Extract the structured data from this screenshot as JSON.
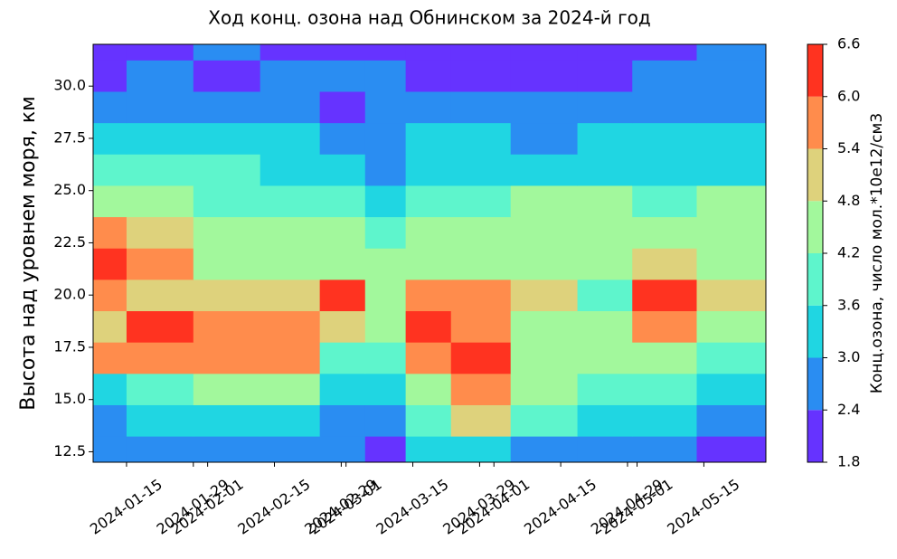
{
  "chart_data": {
    "type": "contour",
    "title": "Ход конц. озона над Обнинском за 2024-й год",
    "ylabel": "Высота над уровнем моря, км",
    "colorbar_label": "Конц.озона, число мол.*10е12/см3",
    "x": [
      "2024-01-08",
      "2024-01-22",
      "2024-02-05",
      "2024-02-19",
      "2024-03-01",
      "2024-03-09",
      "2024-03-18",
      "2024-03-28",
      "2024-04-12",
      "2024-04-25",
      "2024-05-05",
      "2024-05-22"
    ],
    "y": [
      12.5,
      14,
      15.5,
      17,
      18.5,
      20,
      21.5,
      23,
      24.5,
      26,
      27.5,
      29,
      30.5,
      32
    ],
    "z": [
      [
        2.7,
        2.7,
        2.7,
        2.7,
        2.7,
        2.1,
        3.3,
        3.3,
        2.7,
        2.7,
        2.7,
        2.1
      ],
      [
        2.7,
        3.3,
        3.3,
        3.3,
        2.7,
        2.7,
        3.9,
        5.1,
        3.9,
        3.3,
        3.3,
        2.7
      ],
      [
        3.3,
        3.9,
        4.5,
        4.5,
        3.3,
        3.3,
        4.5,
        5.7,
        4.5,
        3.9,
        3.9,
        3.3
      ],
      [
        5.7,
        5.7,
        5.7,
        5.7,
        3.9,
        3.9,
        5.7,
        6.3,
        4.5,
        4.5,
        4.5,
        3.9
      ],
      [
        5.1,
        6.3,
        5.7,
        5.7,
        5.1,
        4.5,
        6.3,
        5.7,
        4.5,
        4.5,
        5.7,
        4.5
      ],
      [
        5.7,
        5.1,
        5.1,
        5.1,
        6.3,
        4.5,
        5.7,
        5.7,
        5.1,
        3.9,
        6.3,
        5.1
      ],
      [
        6.3,
        5.7,
        4.5,
        4.5,
        4.5,
        4.5,
        4.5,
        4.5,
        4.5,
        4.5,
        5.1,
        4.5
      ],
      [
        5.7,
        5.1,
        4.5,
        4.5,
        4.5,
        3.9,
        4.5,
        4.5,
        4.5,
        4.5,
        4.5,
        4.5
      ],
      [
        4.5,
        4.5,
        3.9,
        3.9,
        3.9,
        3.3,
        3.9,
        3.9,
        4.5,
        4.5,
        3.9,
        4.5
      ],
      [
        3.9,
        3.9,
        3.9,
        3.3,
        3.3,
        2.7,
        3.3,
        3.3,
        3.3,
        3.3,
        3.3,
        3.3
      ],
      [
        3.3,
        3.3,
        3.3,
        3.3,
        2.7,
        2.7,
        3.3,
        3.3,
        2.7,
        3.3,
        3.3,
        3.3
      ],
      [
        2.7,
        2.7,
        2.7,
        2.7,
        2.1,
        2.7,
        2.7,
        2.7,
        2.7,
        2.7,
        2.7,
        2.7
      ],
      [
        2.1,
        2.7,
        2.1,
        2.7,
        2.7,
        2.7,
        2.1,
        2.1,
        2.1,
        2.1,
        2.7,
        2.7
      ],
      [
        2.1,
        2.1,
        2.7,
        2.1,
        2.1,
        2.1,
        2.1,
        2.1,
        2.1,
        2.1,
        2.1,
        2.7
      ]
    ],
    "levels": [
      1.8,
      2.4,
      3.0,
      3.6,
      4.2,
      4.8,
      5.4,
      6.0,
      6.6
    ],
    "level_ticks": [
      1.8,
      2.4,
      {
        "value": 3.0,
        "label": "3.0"
      },
      3.6,
      4.2,
      4.8,
      5.4,
      {
        "value": 6.0,
        "label": "6.0"
      },
      6.6
    ],
    "colors": [
      "#6633ff",
      "#2a8df2",
      "#20d6e2",
      "#5ef5cc",
      "#a2f89c",
      "#ded27c",
      "#ff8c4c",
      "#ff3320"
    ],
    "xlim": [
      "2024-01-08",
      "2024-05-28"
    ],
    "xticks": [
      "2024-01-15",
      "2024-01-29",
      "2024-02-01",
      "2024-02-15",
      "2024-02-29",
      "2024-03-01",
      "2024-03-15",
      "2024-03-29",
      "2024-04-01",
      "2024-04-15",
      "2024-04-29",
      "2024-05-01",
      "2024-05-15"
    ],
    "ylim": [
      12,
      32
    ],
    "yticks": [
      12.5,
      {
        "value": 15.0,
        "label": "15.0"
      },
      17.5,
      {
        "value": 20.0,
        "label": "20.0"
      },
      22.5,
      {
        "value": 25.0,
        "label": "25.0"
      },
      27.5,
      {
        "value": 30.0,
        "label": "30.0"
      }
    ]
  }
}
